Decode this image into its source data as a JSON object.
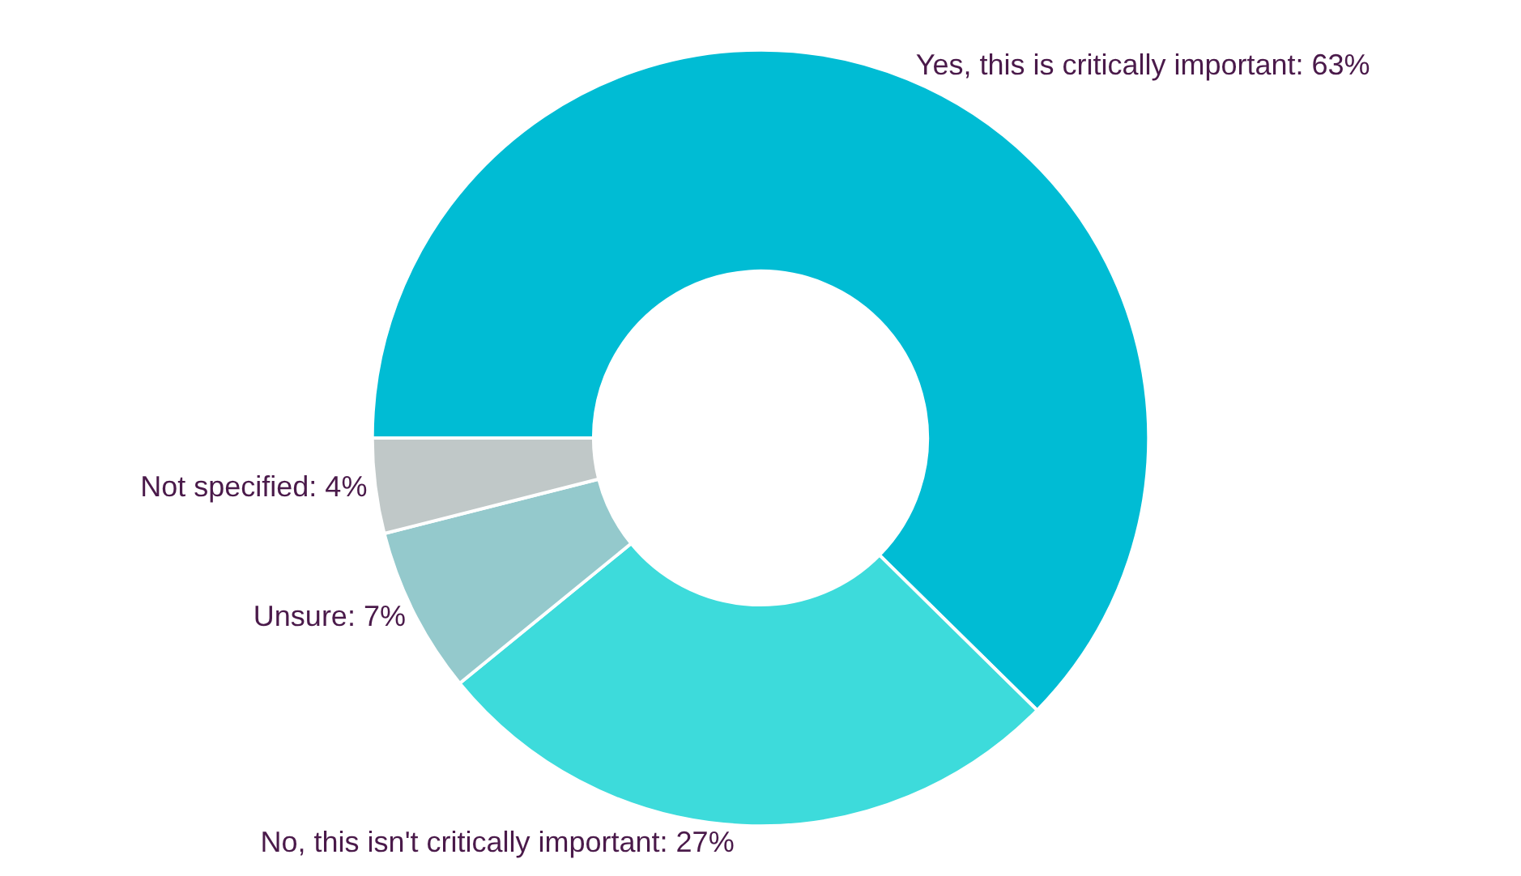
{
  "chart_data": {
    "type": "donut",
    "categories": [
      "Yes, this is critically important",
      "No, this isn't critically important",
      "Unsure",
      "Not specified"
    ],
    "values": [
      63,
      27,
      7,
      4
    ],
    "value_labels": [
      "63%",
      "27%",
      "7%",
      "4%"
    ],
    "colors": [
      "#00bcd4",
      "#3ddbdb",
      "#94c9cc",
      "#c0c8c8"
    ],
    "legend": false
  }
}
